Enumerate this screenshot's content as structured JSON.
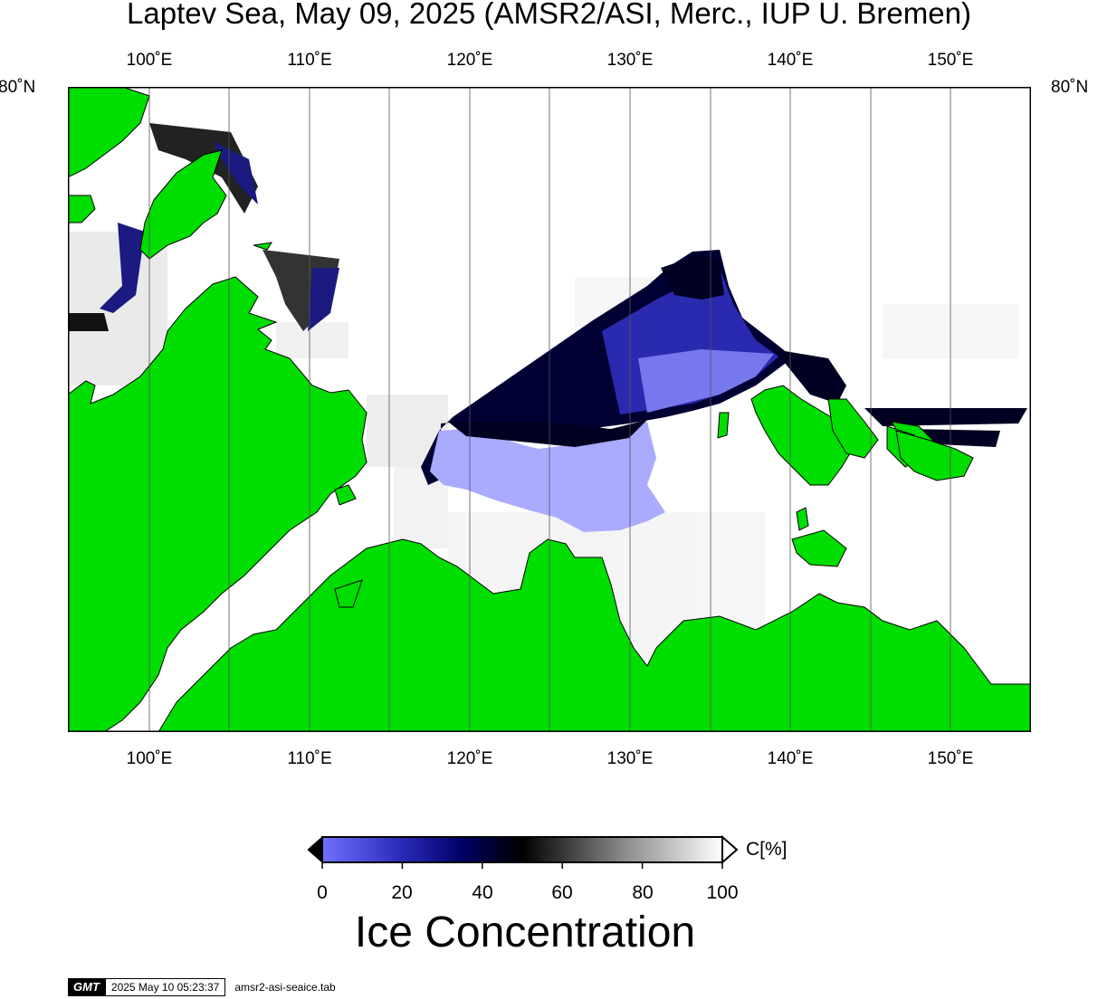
{
  "title": "Laptev Sea, May 09, 2025 (AMSR2/ASI, Merc., IUP U. Bremen)",
  "lon_labels": [
    "100˚E",
    "110˚E",
    "120˚E",
    "130˚E",
    "140˚E",
    "150˚E"
  ],
  "lat_label": "80˚N",
  "colors": {
    "land": "#00dd00",
    "ocean": "#ffffff",
    "ice_low": "#7070ff",
    "ice_mid": "#000066",
    "ice_high": "#ffffff"
  },
  "colorbar": {
    "ticks": [
      "0",
      "20",
      "40",
      "60",
      "80",
      "100"
    ],
    "unit": "C[%]",
    "title": "Ice Concentration"
  },
  "stamp": {
    "logo": "GMT",
    "timestamp": "2025 May 10 05:23:37",
    "file": "amsr2-asi-seaice.tab"
  }
}
